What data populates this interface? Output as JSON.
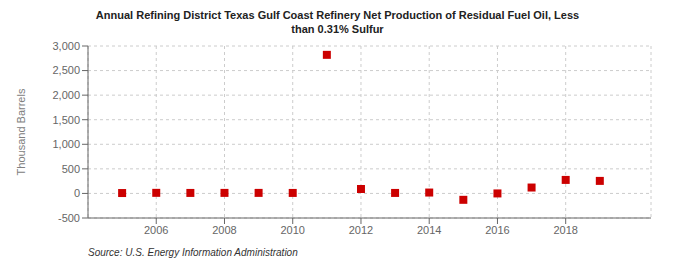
{
  "chart_data": {
    "type": "scatter",
    "title": "Annual Refining District Texas Gulf Coast Refinery Net Production of Residual Fuel Oil, Less\nthan 0.31% Sulfur",
    "ylabel": "Thousand Barrels",
    "annotations": [
      "Source: U.S. Energy Information Administration"
    ],
    "x": [
      2005,
      2006,
      2007,
      2008,
      2009,
      2010,
      2011,
      2012,
      2013,
      2014,
      2015,
      2016,
      2017,
      2018,
      2019
    ],
    "values": [
      8,
      12,
      10,
      11,
      11,
      10,
      2820,
      90,
      10,
      18,
      -130,
      0,
      120,
      275,
      255
    ],
    "color": "#cc0000",
    "marker": "square",
    "xlim": [
      2004.0,
      2020.5
    ],
    "xticks": [
      2006,
      2008,
      2010,
      2012,
      2014,
      2016,
      2018
    ],
    "ylim": [
      -500,
      3000
    ],
    "yticks": [
      -500,
      0,
      500,
      {
        "value": 1000,
        "label": "1,000"
      },
      {
        "value": 1500,
        "label": "1,500"
      },
      {
        "value": 2000,
        "label": "2,000"
      },
      {
        "value": 2500,
        "label": "2,500"
      },
      {
        "value": 3000,
        "label": "3,000"
      }
    ],
    "grid": true
  }
}
